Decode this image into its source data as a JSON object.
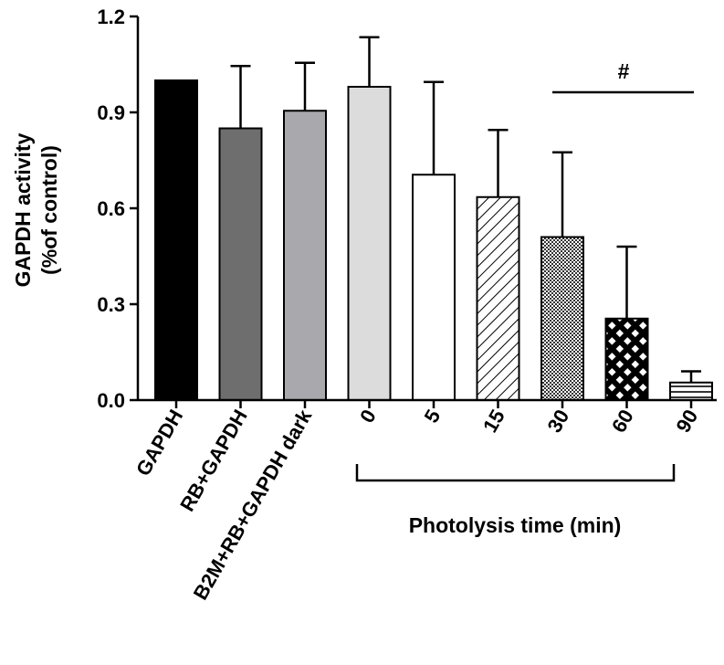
{
  "chart_data": {
    "type": "bar",
    "ylabel_line1": "GAPDH activity",
    "ylabel_line2": "(%of control)",
    "xlabel": "",
    "ylim": [
      0,
      1.2
    ],
    "yticks": [
      "0.0",
      "0.3",
      "0.6",
      "0.9",
      "1.2"
    ],
    "grid": false,
    "categories": [
      "GAPDH",
      "RB+GAPDH",
      "B2M+RB+GAPDH dark",
      "0",
      "5",
      "15",
      "30",
      "60",
      "90"
    ],
    "values": [
      1.0,
      0.85,
      0.905,
      0.98,
      0.705,
      0.635,
      0.51,
      0.255,
      0.055
    ],
    "errors": [
      0.0,
      0.195,
      0.15,
      0.155,
      0.29,
      0.21,
      0.265,
      0.225,
      0.035
    ],
    "bar_fills": [
      "#000000",
      "#6e6e6e",
      "#a9a9ad",
      "#dcdcdc",
      "#ffffff",
      "hatch-diag",
      "dots",
      "crosshatch",
      "hlines"
    ],
    "group_label": "Photolysis time (min)",
    "significance_mark": "#"
  }
}
